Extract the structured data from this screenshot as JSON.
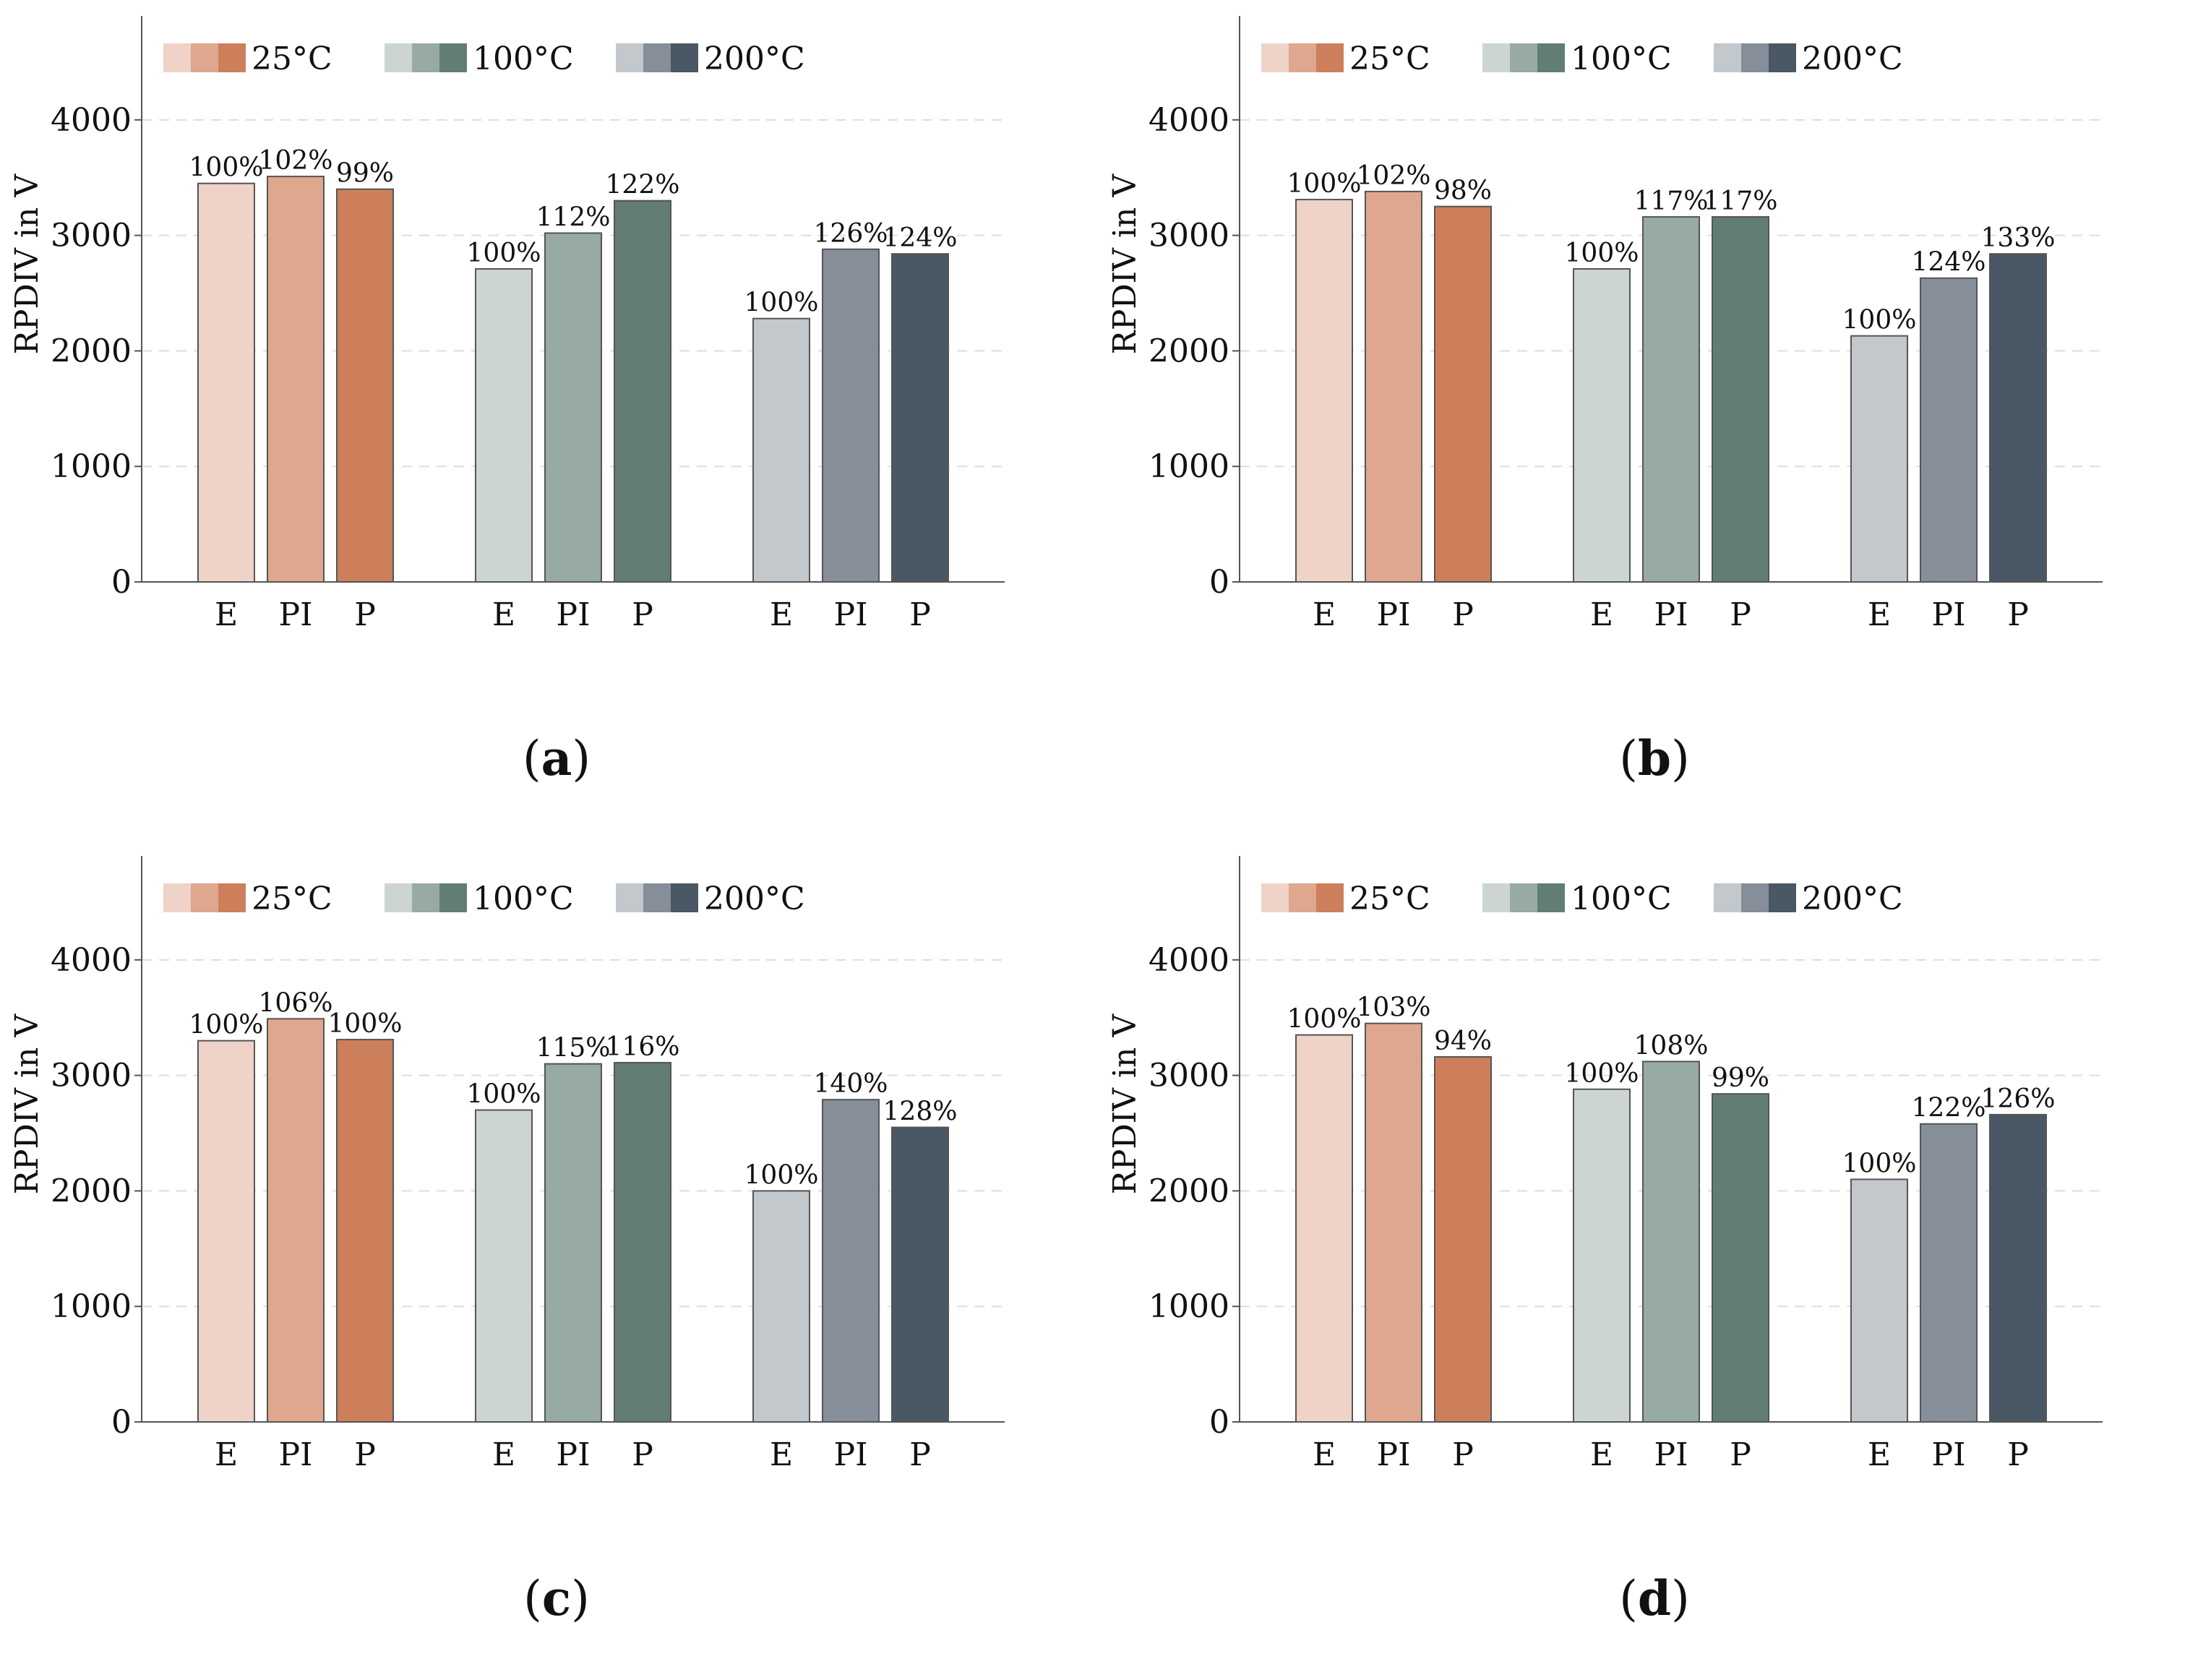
{
  "legend": [
    {
      "label": "25°C",
      "colors": [
        "#efd3c8",
        "#dea78e",
        "#cd7f5c"
      ]
    },
    {
      "label": "100°C",
      "colors": [
        "#ccd5d2",
        "#97aaa3",
        "#627d74"
      ]
    },
    {
      "label": "200°C",
      "colors": [
        "#c3c8cd",
        "#868f99",
        "#4a5865"
      ]
    }
  ],
  "chart_data": [
    {
      "type": "bar",
      "caption": "a",
      "ylabel": "RPDIV in V",
      "ylim": [
        0,
        4900
      ],
      "yticks": [
        0,
        1000,
        2000,
        3000,
        4000
      ],
      "grid": "horizontal dashed",
      "legend_position": "top-left",
      "groups": [
        {
          "name": "25°C",
          "categories": [
            "E",
            "PI",
            "P"
          ],
          "values": [
            3450,
            3510,
            3400
          ],
          "labels": [
            "100%",
            "102%",
            "99%"
          ]
        },
        {
          "name": "100°C",
          "categories": [
            "E",
            "PI",
            "P"
          ],
          "values": [
            2710,
            3020,
            3300
          ],
          "labels": [
            "100%",
            "112%",
            "122%"
          ]
        },
        {
          "name": "200°C",
          "categories": [
            "E",
            "PI",
            "P"
          ],
          "values": [
            2280,
            2880,
            2840
          ],
          "labels": [
            "100%",
            "126%",
            "124%"
          ]
        }
      ]
    },
    {
      "type": "bar",
      "caption": "b",
      "ylabel": "RPDIV in V",
      "ylim": [
        0,
        4900
      ],
      "yticks": [
        0,
        1000,
        2000,
        3000,
        4000
      ],
      "grid": "horizontal dashed",
      "legend_position": "top-left",
      "groups": [
        {
          "name": "25°C",
          "categories": [
            "E",
            "PI",
            "P"
          ],
          "values": [
            3310,
            3380,
            3250
          ],
          "labels": [
            "100%",
            "102%",
            "98%"
          ]
        },
        {
          "name": "100°C",
          "categories": [
            "E",
            "PI",
            "P"
          ],
          "values": [
            2710,
            3160,
            3160
          ],
          "labels": [
            "100%",
            "117%",
            "117%"
          ]
        },
        {
          "name": "200°C",
          "categories": [
            "E",
            "PI",
            "P"
          ],
          "values": [
            2130,
            2630,
            2840
          ],
          "labels": [
            "100%",
            "124%",
            "133%"
          ]
        }
      ]
    },
    {
      "type": "bar",
      "caption": "c",
      "ylabel": "RPDIV in V",
      "ylim": [
        0,
        4900
      ],
      "yticks": [
        0,
        1000,
        2000,
        3000,
        4000
      ],
      "grid": "horizontal dashed",
      "legend_position": "top-left",
      "groups": [
        {
          "name": "25°C",
          "categories": [
            "E",
            "PI",
            "P"
          ],
          "values": [
            3300,
            3490,
            3310
          ],
          "labels": [
            "100%",
            "106%",
            "100%"
          ]
        },
        {
          "name": "100°C",
          "categories": [
            "E",
            "PI",
            "P"
          ],
          "values": [
            2700,
            3100,
            3110
          ],
          "labels": [
            "100%",
            "115%",
            "116%"
          ]
        },
        {
          "name": "200°C",
          "categories": [
            "E",
            "PI",
            "P"
          ],
          "values": [
            2000,
            2790,
            2550
          ],
          "labels": [
            "100%",
            "140%",
            "128%"
          ]
        }
      ]
    },
    {
      "type": "bar",
      "caption": "d",
      "ylabel": "RPDIV in V",
      "ylim": [
        0,
        4900
      ],
      "yticks": [
        0,
        1000,
        2000,
        3000,
        4000
      ],
      "grid": "horizontal dashed",
      "legend_position": "top-left",
      "groups": [
        {
          "name": "25°C",
          "categories": [
            "E",
            "PI",
            "P"
          ],
          "values": [
            3350,
            3450,
            3160
          ],
          "labels": [
            "100%",
            "103%",
            "94%"
          ]
        },
        {
          "name": "100°C",
          "categories": [
            "E",
            "PI",
            "P"
          ],
          "values": [
            2880,
            3120,
            2840
          ],
          "labels": [
            "100%",
            "108%",
            "99%"
          ]
        },
        {
          "name": "200°C",
          "categories": [
            "E",
            "PI",
            "P"
          ],
          "values": [
            2100,
            2580,
            2660
          ],
          "labels": [
            "100%",
            "122%",
            "126%"
          ]
        }
      ]
    }
  ]
}
